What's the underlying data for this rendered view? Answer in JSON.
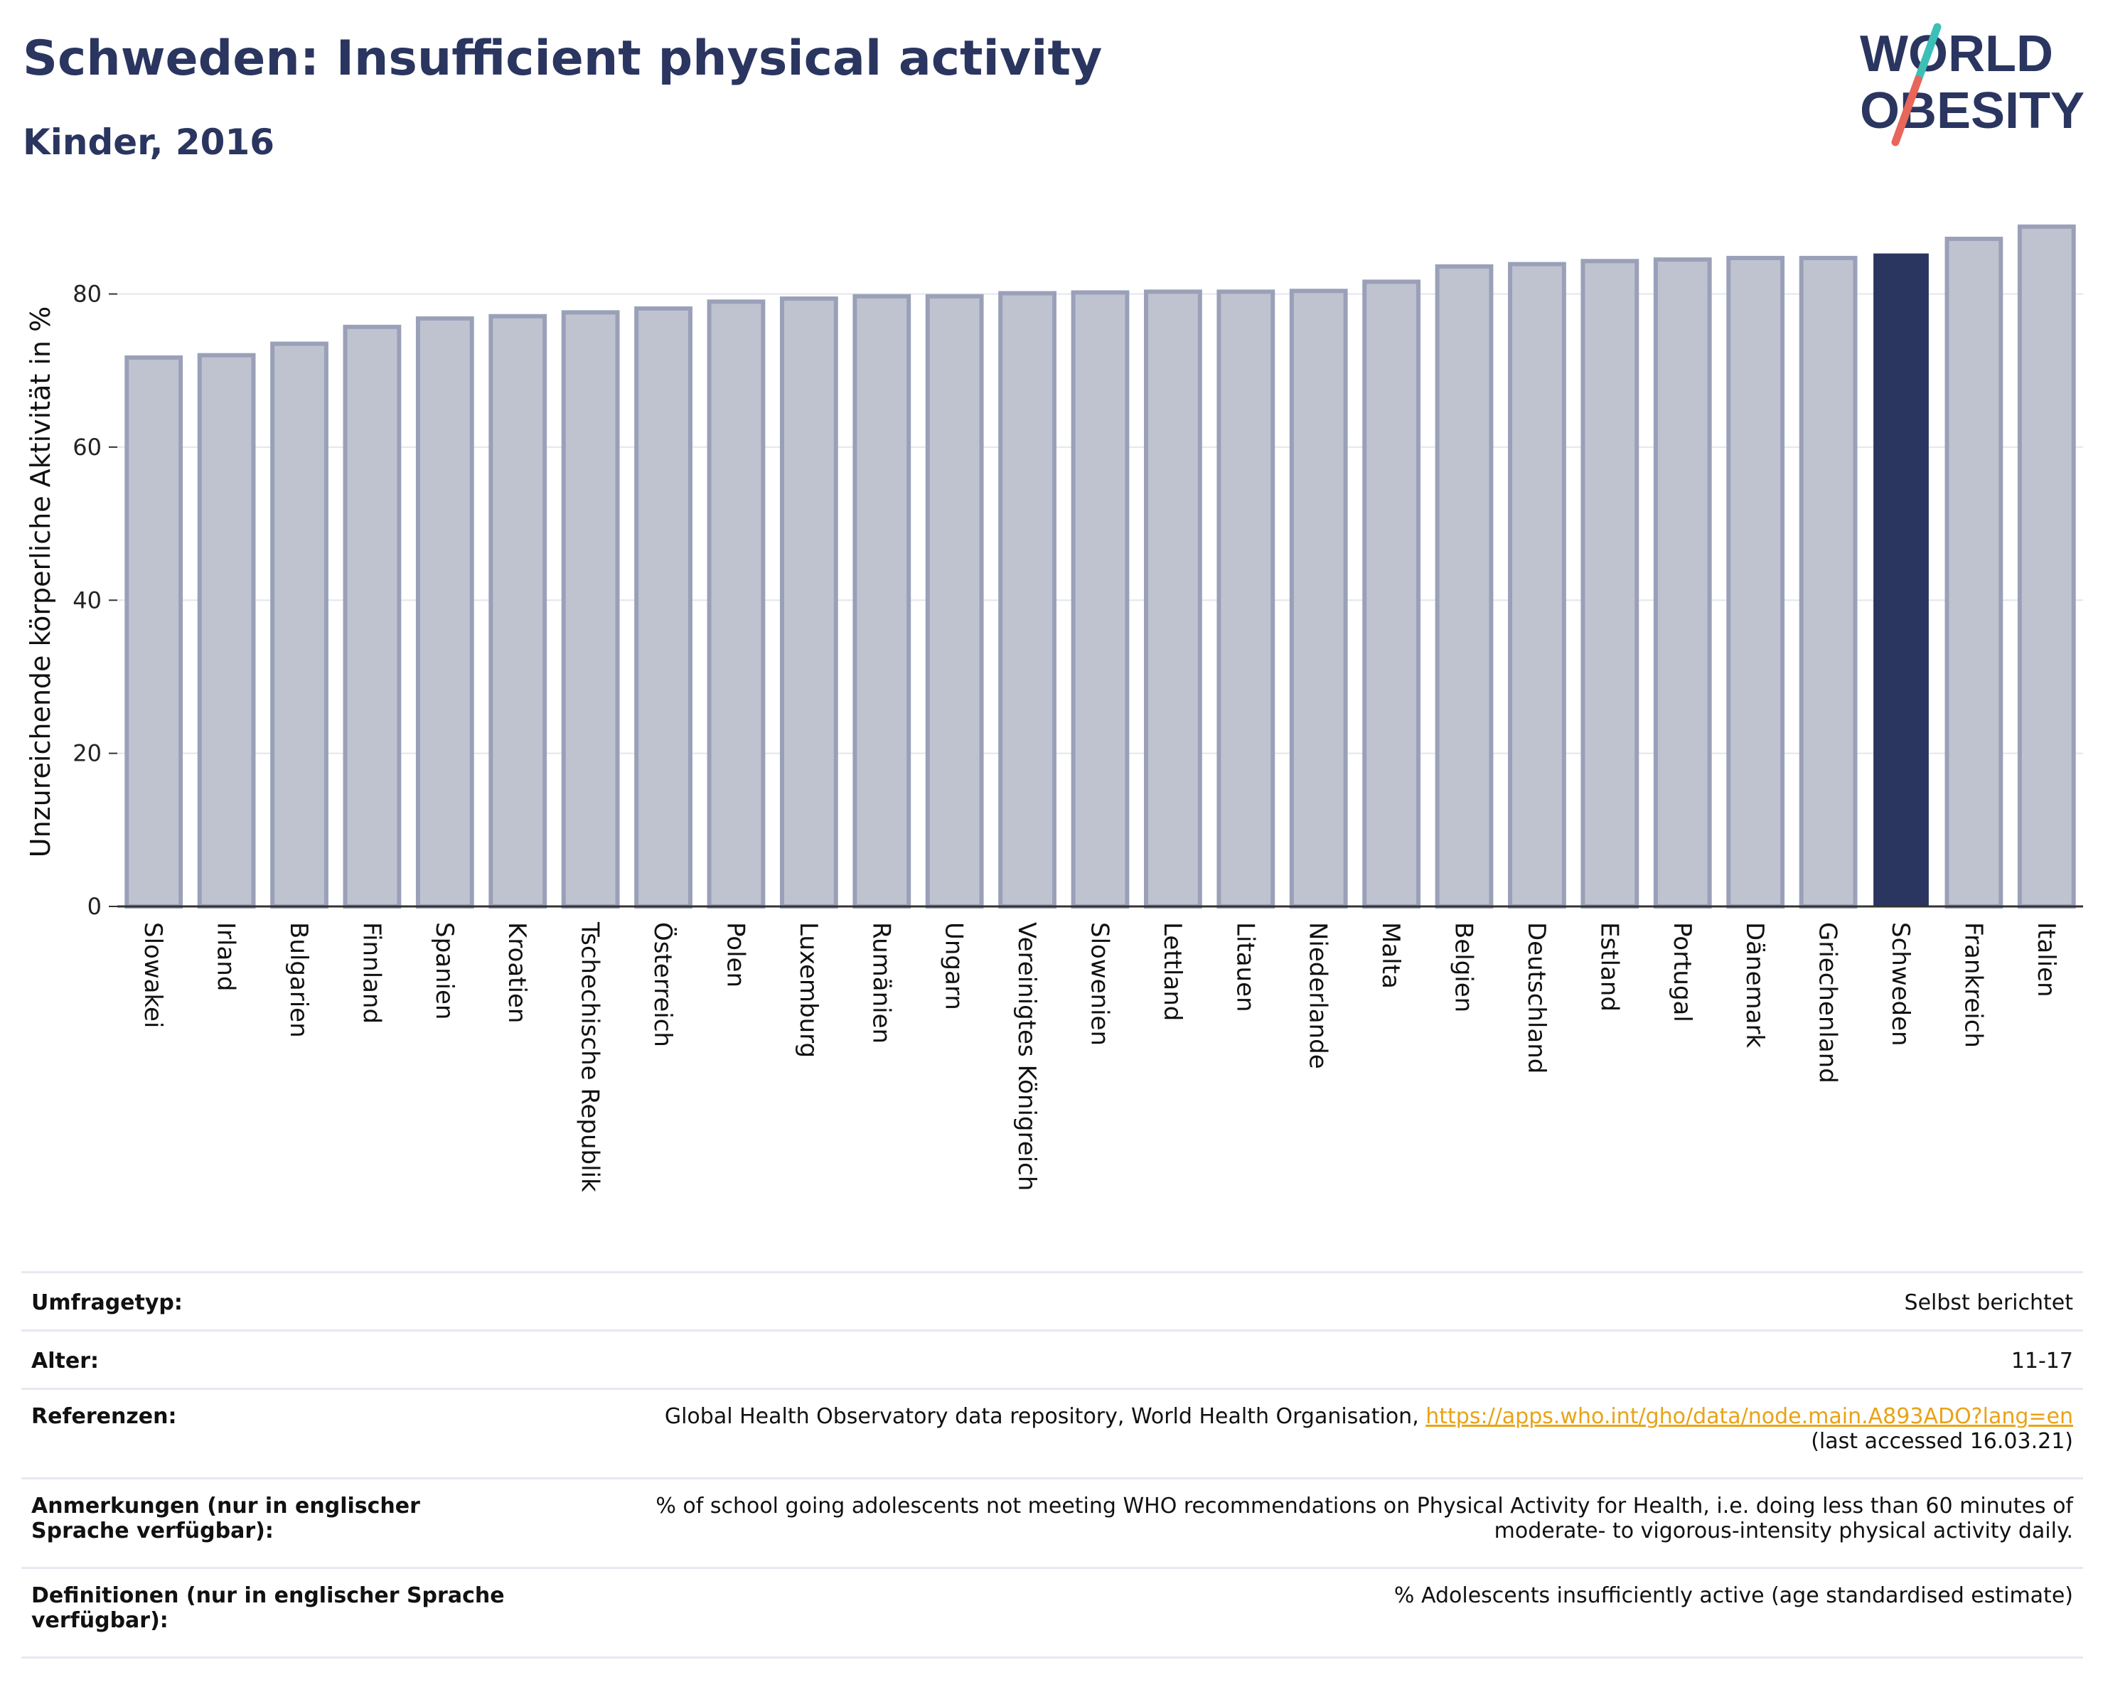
{
  "header": {
    "title": "Schweden: Insufficient physical activity",
    "subtitle": "Kinder, 2016"
  },
  "logo": {
    "line1": "WORLD",
    "line2": "OBESITY"
  },
  "colors": {
    "bar": "#bfc3d0",
    "bar_border": "#9aa0b8",
    "highlight": "#2a3560",
    "title": "#2a3560",
    "link": "#e8a317",
    "logo_slash_teal": "#3bbfb7",
    "logo_slash_red": "#e8665a"
  },
  "chart_data": {
    "type": "bar",
    "ylabel": "Unzureichende körperliche Aktivität in %",
    "ylim": [
      0,
      88.5
    ],
    "yticks": [
      0,
      20,
      40,
      60,
      80
    ],
    "grid": true,
    "highlight_category": "Schweden",
    "categories": [
      "Slowakei",
      "Irland",
      "Bulgarien",
      "Finnland",
      "Spanien",
      "Kroatien",
      "Tschechische Republik",
      "Österreich",
      "Polen",
      "Luxemburg",
      "Rumänien",
      "Ungarn",
      "Vereinigtes Königreich",
      "Slowenien",
      "Lettland",
      "Litauen",
      "Niederlande",
      "Malta",
      "Belgien",
      "Deutschland",
      "Estland",
      "Portugal",
      "Dänemark",
      "Griechenland",
      "Schweden",
      "Frankreich",
      "Italien"
    ],
    "values": [
      71.7,
      72.0,
      73.5,
      75.7,
      76.8,
      77.1,
      77.6,
      78.1,
      79.0,
      79.4,
      79.7,
      79.7,
      80.1,
      80.2,
      80.3,
      80.3,
      80.4,
      81.6,
      83.6,
      83.9,
      84.3,
      84.5,
      84.7,
      84.7,
      85.2,
      87.2,
      88.8
    ]
  },
  "info": [
    {
      "key": "Umfragetyp:",
      "value": "Selbst berichtet"
    },
    {
      "key": "Alter:",
      "value": "11-17"
    },
    {
      "key": "Referenzen:",
      "value_text": "Global Health Observatory data repository, World Health Organisation, ",
      "link": "https://apps.who.int/gho/data/node.main.A893ADO?lang=en",
      "value_tail": "(last accessed 16.03.21)"
    },
    {
      "key": "Anmerkungen (nur in englischer Sprache verfügbar):",
      "value_line1": "% of school going adolescents not meeting WHO recommendations on Physical Activity for Health, i.e. doing less than 60 minutes of",
      "value_line2": "moderate- to vigorous-intensity physical activity daily."
    },
    {
      "key": "Definitionen (nur in englischer Sprache verfügbar):",
      "value": "% Adolescents insufficiently active (age standardised estimate)"
    }
  ]
}
